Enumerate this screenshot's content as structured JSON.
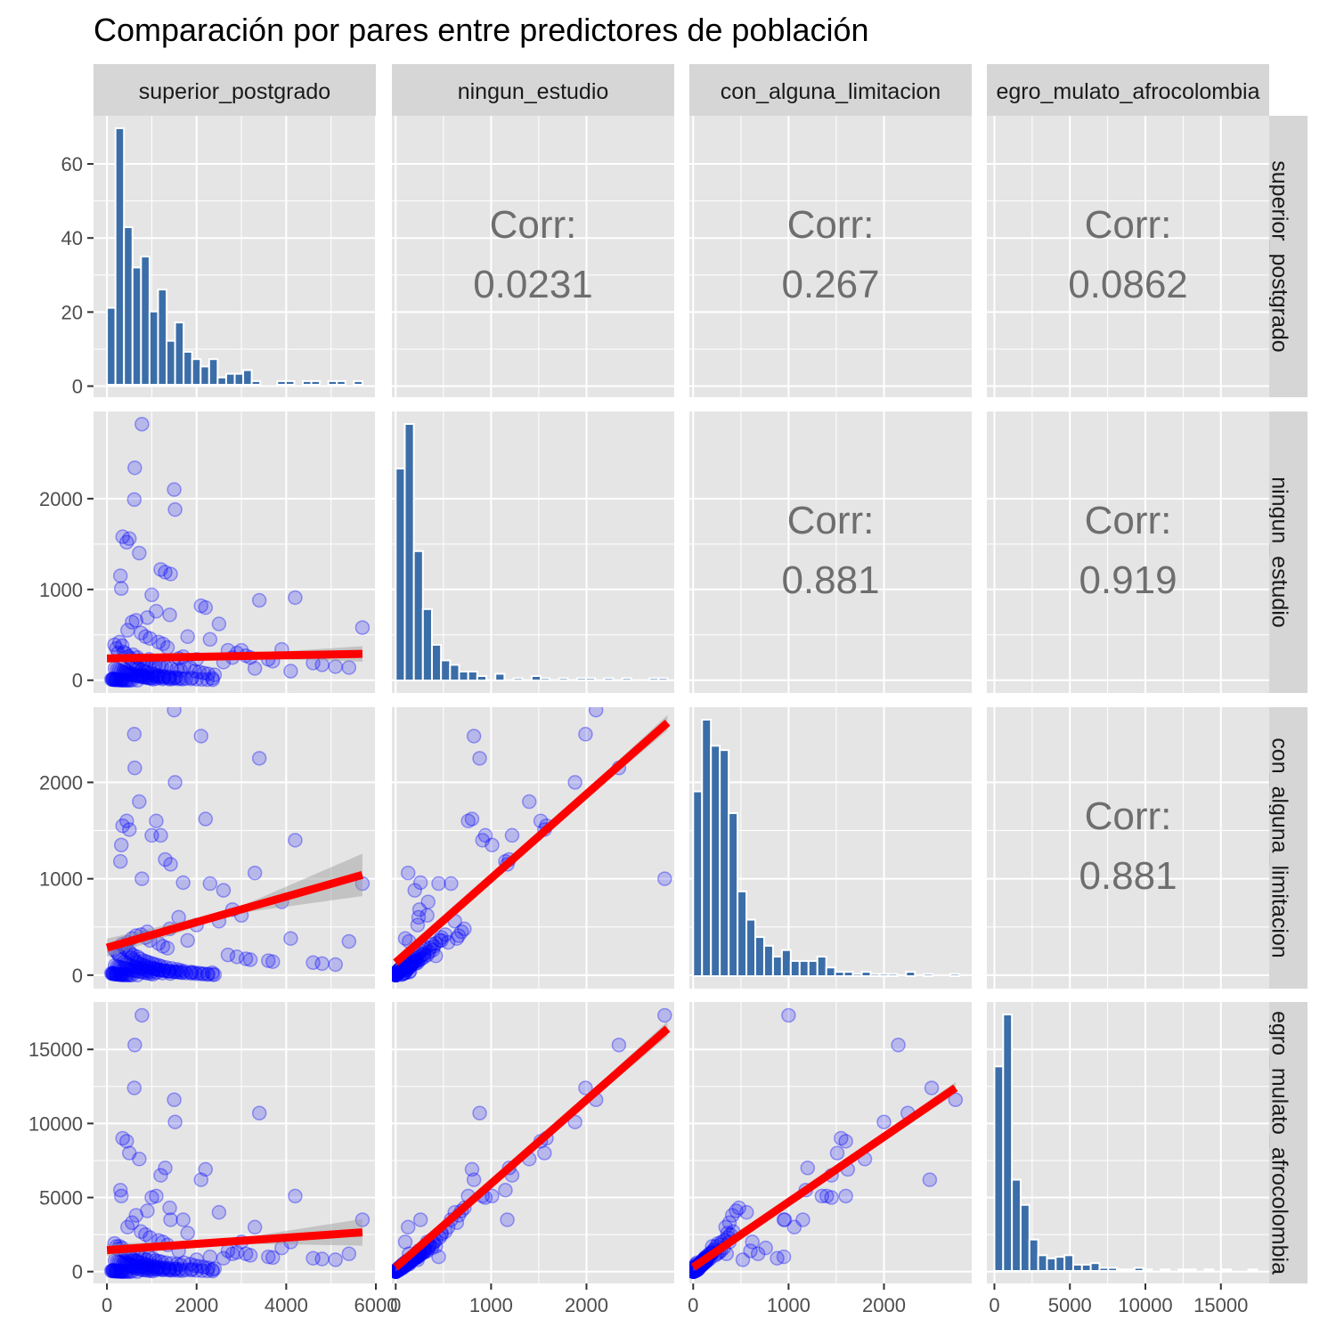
{
  "title": "Comparación por pares entre predictores de población",
  "colors": {
    "panel_bg": "#e5e5e5",
    "strip_bg": "#d6d6d6",
    "grid": "#ffffff",
    "histogram_fill": "#3b6ea8",
    "point": "#0000ff",
    "fit_line": "#ff0000",
    "ribbon": "#999999",
    "corr_text": "#6e6e6e"
  },
  "chart_data": {
    "type": "scatter",
    "variables": [
      "superior_postgrado",
      "ningun_estudio",
      "con_alguna_limitacion",
      "negro_mulato_afrocolombiano"
    ],
    "strip_labels": [
      "superior_postgrado",
      "ningun_estudio",
      "con_alguna_limitacion",
      "egro_mulato_afrocolombia"
    ],
    "row_strip_labels": [
      "superior_postgrado",
      "ningun_estudio",
      "con_alguna_limitacion",
      "egro_mulato_afrocolombia"
    ],
    "axes": [
      {
        "range": [
          -300,
          6000
        ],
        "ticks": [
          0,
          2000,
          4000,
          6000
        ],
        "tick_labels": [
          "0",
          "2000",
          "4000",
          "6000"
        ]
      },
      {
        "range": [
          -40,
          2920
        ],
        "ticks": [
          0,
          1000,
          2000
        ],
        "tick_labels": [
          "0",
          "1000",
          "2000"
        ]
      },
      {
        "range": [
          -40,
          2920
        ],
        "ticks": [
          0,
          1000,
          2000
        ],
        "tick_labels": [
          "0",
          "1000",
          "2000"
        ]
      },
      {
        "range": [
          -500,
          18200
        ],
        "ticks": [
          0,
          5000,
          10000,
          15000
        ],
        "tick_labels": [
          "0",
          "5000",
          "10000",
          "15000"
        ]
      }
    ],
    "row_axes": [
      {
        "range": [
          -3,
          73
        ],
        "ticks": [
          0,
          20,
          40,
          60
        ],
        "tick_labels": [
          "0",
          "20",
          "40",
          "60"
        ]
      },
      {
        "range": [
          -140,
          2960
        ],
        "ticks": [
          0,
          1000,
          2000
        ],
        "tick_labels": [
          "0",
          "1000",
          "2000"
        ]
      },
      {
        "range": [
          -140,
          2780
        ],
        "ticks": [
          0,
          1000,
          2000
        ],
        "tick_labels": [
          "0",
          "1000",
          "2000"
        ]
      },
      {
        "range": [
          -800,
          18200
        ],
        "ticks": [
          0,
          5000,
          10000,
          15000
        ],
        "tick_labels": [
          "0",
          "5000",
          "10000",
          "15000"
        ]
      }
    ],
    "histograms": [
      {
        "variable": "superior_postgrado",
        "bin_width": 190,
        "start": 0,
        "counts": [
          21,
          70,
          43,
          32,
          35,
          20,
          26,
          12,
          17,
          9,
          7,
          5,
          7,
          2,
          3,
          3,
          4,
          1,
          0,
          0,
          1,
          1,
          0,
          1,
          1,
          0,
          1,
          1,
          0,
          1
        ]
      },
      {
        "variable": "ningun_estudio",
        "bin_width": 95,
        "start": 0,
        "counts": [
          95,
          115,
          58,
          32,
          16,
          9,
          7,
          4,
          4,
          2,
          0,
          3,
          0,
          1,
          0,
          2,
          1,
          0,
          1,
          0,
          1,
          1,
          0,
          1,
          0,
          1,
          0,
          0,
          1,
          1
        ]
      },
      {
        "variable": "con_alguna_limitacion",
        "bin_width": 93,
        "start": 0,
        "counts": [
          85,
          118,
          106,
          104,
          75,
          39,
          26,
          18,
          14,
          9,
          12,
          7,
          7,
          7,
          9,
          4,
          2,
          2,
          1,
          2,
          1,
          1,
          1,
          0,
          2,
          0,
          1,
          0,
          0,
          1
        ]
      },
      {
        "variable": "negro_mulato_afrocolombiano",
        "bin_width": 580,
        "start": 0,
        "counts": [
          130,
          163,
          58,
          42,
          20,
          10,
          8,
          9,
          10,
          4,
          4,
          5,
          2,
          2,
          1,
          1,
          2,
          1,
          0,
          1,
          0,
          1,
          1,
          0,
          1,
          0,
          1,
          0,
          0,
          1
        ]
      }
    ],
    "correlations": [
      {
        "row": 0,
        "col": 1,
        "label": "Corr:",
        "value": "0.0231"
      },
      {
        "row": 0,
        "col": 2,
        "label": "Corr:",
        "value": "0.267"
      },
      {
        "row": 0,
        "col": 3,
        "label": "Corr:",
        "value": "0.0862"
      },
      {
        "row": 1,
        "col": 2,
        "label": "Corr:",
        "value": "0.881"
      },
      {
        "row": 1,
        "col": 3,
        "label": "Corr:",
        "value": "0.919"
      },
      {
        "row": 2,
        "col": 3,
        "label": "Corr:",
        "value": "0.881"
      }
    ],
    "fit_lines": [
      {
        "row": 1,
        "col": 0,
        "x": [
          0,
          5700
        ],
        "y": [
          240,
          290
        ],
        "band_halfwidth": [
          18,
          85
        ]
      },
      {
        "row": 2,
        "col": 0,
        "x": [
          0,
          5700
        ],
        "y": [
          285,
          1040
        ],
        "band_halfwidth": [
          25,
          220
        ]
      },
      {
        "row": 2,
        "col": 1,
        "x": [
          0,
          2850
        ],
        "y": [
          130,
          2620
        ],
        "band_halfwidth": [
          20,
          80
        ]
      },
      {
        "row": 3,
        "col": 0,
        "x": [
          0,
          5700
        ],
        "y": [
          1450,
          2650
        ],
        "band_halfwidth": [
          150,
          900
        ]
      },
      {
        "row": 3,
        "col": 1,
        "x": [
          0,
          2850
        ],
        "y": [
          280,
          16400
        ],
        "band_halfwidth": [
          150,
          500
        ]
      },
      {
        "row": 3,
        "col": 2,
        "x": [
          0,
          2750
        ],
        "y": [
          290,
          12400
        ],
        "band_halfwidth": [
          150,
          400
        ]
      }
    ],
    "points": {
      "superior_postgrado": [
        780,
        620,
        610,
        1500,
        1520,
        350,
        440,
        500,
        720,
        1200,
        1300,
        300,
        320,
        1000,
        1420,
        4200,
        3400,
        2100,
        2200,
        1100,
        1700,
        5700,
        3900,
        5400,
        4100,
        3300,
        2300,
        1800,
        2600,
        3000,
        2800,
        2000,
        1600,
        2500,
        1400,
        900,
        650,
        560,
        460,
        760,
        860,
        960,
        1150,
        1250,
        1350,
        170,
        210,
        250,
        280,
        340,
        380,
        420,
        480,
        520,
        580,
        680,
        740,
        820,
        880,
        940,
        1020,
        1080,
        1160,
        1220,
        1320,
        1440,
        1560,
        1640,
        1720,
        1860,
        1960,
        2060,
        2160,
        2260,
        2400,
        2700,
        2900,
        3100,
        3200,
        3600,
        3700,
        4600,
        4800,
        5100,
        180,
        230,
        270,
        310,
        360,
        400,
        450,
        490,
        530,
        590,
        640,
        690,
        750,
        800,
        850,
        910,
        970,
        1030,
        1090,
        1180,
        1270,
        1380,
        1480,
        1580,
        1680,
        100,
        130,
        150,
        190,
        220,
        260,
        290,
        330,
        370,
        410,
        470,
        510,
        550,
        600,
        660,
        700,
        770,
        830,
        890,
        990,
        1060,
        1140,
        1260,
        1370,
        1540,
        1900,
        2350,
        140,
        160,
        200,
        240,
        300,
        350,
        390,
        430,
        470,
        540,
        610,
        670,
        730,
        790,
        870,
        930,
        1010,
        1110,
        1240,
        1410,
        120,
        200,
        320,
        440,
        560,
        680,
        800,
        920,
        1040,
        1160,
        1280,
        1400,
        1520,
        1640,
        1760,
        1880,
        2000,
        2120,
        2240,
        2360
      ],
      "ningun_estudio": [
        2820,
        2340,
        1990,
        2100,
        1880,
        1580,
        1520,
        1560,
        1400,
        1220,
        1190,
        1150,
        1010,
        940,
        1170,
        910,
        880,
        820,
        800,
        760,
        260,
        580,
        340,
        140,
        100,
        130,
        450,
        480,
        200,
        330,
        250,
        230,
        240,
        620,
        720,
        690,
        660,
        640,
        550,
        520,
        480,
        460,
        420,
        400,
        360,
        390,
        350,
        300,
        420,
        380,
        310,
        290,
        260,
        240,
        280,
        250,
        220,
        200,
        180,
        230,
        210,
        170,
        160,
        150,
        140,
        130,
        120,
        110,
        150,
        140,
        100,
        90,
        80,
        70,
        60,
        330,
        300,
        270,
        250,
        230,
        210,
        190,
        170,
        150,
        130,
        120,
        110,
        100,
        90,
        80,
        70,
        65,
        60,
        55,
        50,
        45,
        40,
        35,
        30,
        25,
        20,
        10,
        40,
        30,
        25,
        20,
        18,
        15,
        12,
        10,
        8,
        6,
        5,
        4,
        3,
        2,
        1,
        1,
        0,
        0,
        0,
        190,
        170,
        150,
        130,
        110,
        95,
        85,
        75,
        65,
        55,
        45,
        38,
        32,
        27,
        22,
        18,
        14,
        10,
        7,
        5,
        3,
        120,
        105,
        90,
        80,
        70,
        60,
        50,
        42,
        36,
        30,
        24,
        19,
        15,
        11,
        8,
        6,
        4,
        2,
        1,
        0,
        60,
        55,
        48,
        42,
        36,
        30,
        26,
        22,
        18,
        15,
        12,
        9,
        7,
        5,
        4,
        3,
        2,
        1,
        0,
        0
      ],
      "con_alguna_limitacion": [
        1000,
        2150,
        2500,
        2750,
        2000,
        1550,
        1600,
        1510,
        1800,
        1450,
        1200,
        1180,
        1350,
        1450,
        1150,
        1400,
        2250,
        2480,
        1620,
        1600,
        960,
        950,
        760,
        350,
        380,
        1060,
        950,
        360,
        880,
        620,
        680,
        520,
        600,
        560,
        480,
        450,
        410,
        380,
        340,
        420,
        390,
        360,
        330,
        300,
        280,
        260,
        240,
        220,
        200,
        320,
        290,
        270,
        250,
        230,
        210,
        190,
        170,
        150,
        140,
        130,
        120,
        110,
        100,
        90,
        80,
        70,
        60,
        50,
        40,
        30,
        25,
        20,
        15,
        10,
        5,
        210,
        190,
        170,
        160,
        150,
        140,
        130,
        120,
        110,
        100,
        90,
        85,
        80,
        75,
        70,
        65,
        60,
        55,
        50,
        45,
        40,
        35,
        30,
        25,
        20,
        15,
        10,
        60,
        50,
        45,
        40,
        35,
        30,
        25,
        20,
        18,
        15,
        12,
        10,
        8,
        6,
        4,
        3,
        2,
        1,
        0,
        180,
        160,
        140,
        125,
        110,
        100,
        90,
        80,
        70,
        60,
        50,
        42,
        36,
        30,
        25,
        20,
        15,
        11,
        8,
        5,
        3,
        140,
        125,
        110,
        100,
        90,
        80,
        70,
        60,
        50,
        42,
        35,
        28,
        22,
        17,
        13,
        9,
        6,
        4,
        2,
        0,
        80,
        72,
        64,
        56,
        48,
        40,
        34,
        28,
        23,
        18,
        14,
        11,
        8,
        6,
        4,
        3,
        2,
        1,
        0,
        0
      ],
      "negro_mulato_afrocolombiano": [
        17300,
        15300,
        12400,
        11600,
        10100,
        9000,
        8800,
        8000,
        7600,
        6500,
        7000,
        5500,
        5100,
        5000,
        3500,
        5100,
        10700,
        6200,
        6900,
        5100,
        3500,
        3500,
        1600,
        1200,
        2000,
        3000,
        1000,
        2600,
        900,
        2000,
        1200,
        800,
        1400,
        4000,
        4300,
        4100,
        3800,
        3300,
        3000,
        2700,
        2500,
        2300,
        2100,
        2000,
        1800,
        1900,
        1700,
        1500,
        1700,
        1600,
        1400,
        1300,
        1200,
        1100,
        1300,
        1200,
        1000,
        900,
        800,
        1000,
        900,
        750,
        700,
        650,
        600,
        550,
        500,
        450,
        600,
        500,
        400,
        350,
        300,
        250,
        200,
        1400,
        1300,
        1200,
        1100,
        1000,
        950,
        900,
        850,
        800,
        750,
        700,
        650,
        600,
        550,
        500,
        450,
        400,
        350,
        300,
        250,
        200,
        150,
        120,
        100,
        80,
        60,
        40,
        200,
        160,
        130,
        110,
        90,
        75,
        60,
        50,
        40,
        32,
        25,
        18,
        12,
        8,
        5,
        3,
        2,
        1,
        0,
        900,
        800,
        720,
        650,
        580,
        520,
        460,
        400,
        350,
        300,
        260,
        220,
        190,
        160,
        130,
        100,
        80,
        60,
        40,
        25,
        10,
        700,
        620,
        550,
        480,
        420,
        370,
        320,
        280,
        240,
        200,
        170,
        140,
        110,
        90,
        70,
        50,
        35,
        22,
        12,
        5,
        380,
        340,
        300,
        260,
        230,
        200,
        170,
        145,
        120,
        100,
        80,
        64,
        50,
        38,
        28,
        20,
        13,
        8,
        4,
        2
      ]
    }
  }
}
